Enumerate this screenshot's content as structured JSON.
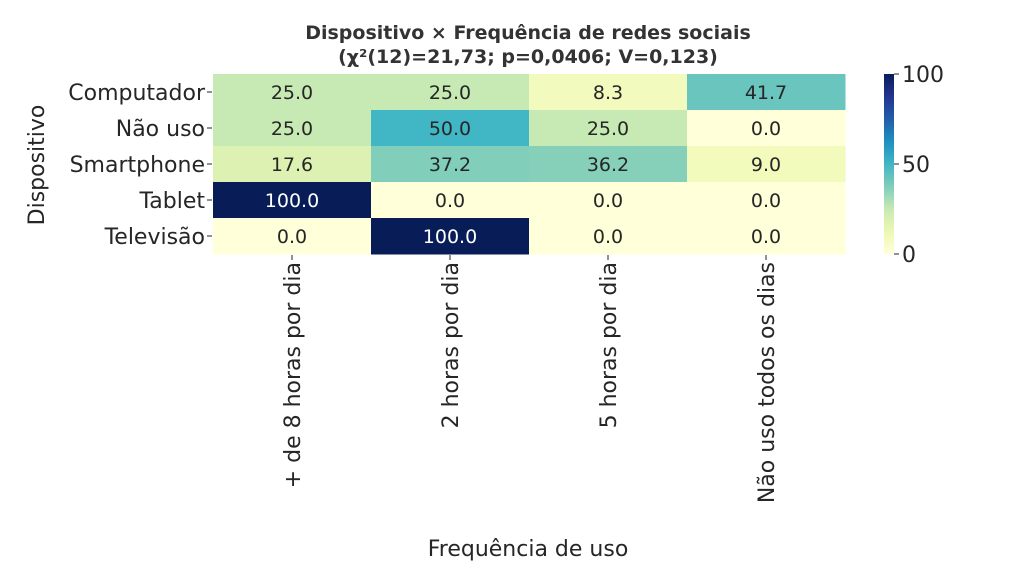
{
  "chart_data": {
    "type": "heatmap",
    "title": "Dispositivo × Frequência de redes sociais",
    "subtitle": "(χ²(12)=21,73; p=0,0406; V=0,123)",
    "xlabel": "Frequência de uso",
    "ylabel": "Dispositivo",
    "x_categories": [
      "+ de 8 horas por dia",
      "2 horas por dia",
      "5 horas por dia",
      "Não uso todos os dias"
    ],
    "y_categories": [
      "Computador",
      "Não uso",
      "Smartphone",
      "Tablet",
      "Televisão"
    ],
    "values": [
      [
        25.0,
        25.0,
        8.3,
        41.7
      ],
      [
        25.0,
        50.0,
        25.0,
        0.0
      ],
      [
        17.6,
        37.2,
        36.2,
        9.0
      ],
      [
        100.0,
        0.0,
        0.0,
        0.0
      ],
      [
        0.0,
        100.0,
        0.0,
        0.0
      ]
    ],
    "colorbar": {
      "min": 0,
      "max": 100,
      "ticks": [
        0,
        50,
        100
      ],
      "colormap": "YlGnBu"
    }
  }
}
